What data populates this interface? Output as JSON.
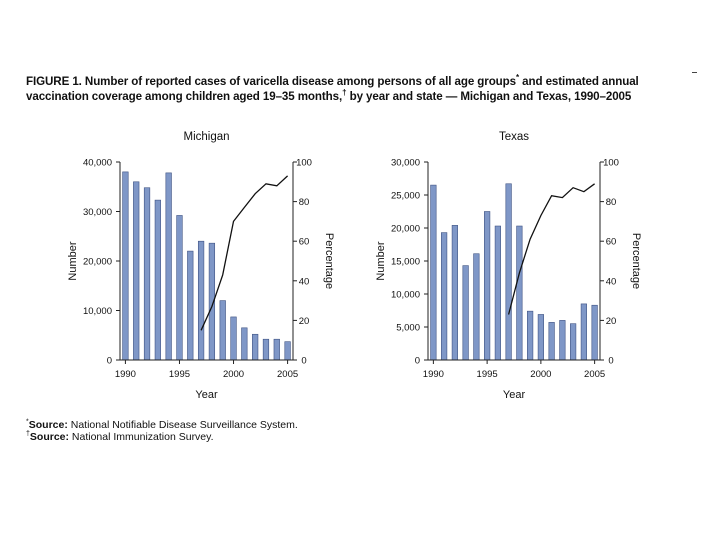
{
  "figure": {
    "label": "FIGURE 1.",
    "title_part1": "Number of reported cases of varicella disease among persons of all age groups",
    "mark1": "*",
    "title_part2": "and estimated annual vaccination coverage among children aged 19–35 months,",
    "mark2": "†",
    "title_part3": "by year and state — Michigan and Texas, 1990–2005"
  },
  "footnotes": [
    {
      "mark": "*",
      "label": "Source:",
      "text": "National Notifiable Disease Surveillance System."
    },
    {
      "mark": "†",
      "label": "Source:",
      "text": "National Immunization Survey."
    }
  ],
  "colors": {
    "bar": "#7f97c7",
    "bar_edge": "#3e5282",
    "line": "#111111",
    "axis": "#222222"
  },
  "chart_data": [
    {
      "type": "bar",
      "title": "Michigan",
      "xlabel": "Year",
      "ylabel": "Number",
      "y2label": "Percentage",
      "x_ticks": [
        "1990",
        "1995",
        "2000",
        "2005"
      ],
      "y_ticks": [
        "0",
        "10,000",
        "20,000",
        "30,000",
        "40,000"
      ],
      "y2_ticks": [
        "0",
        "20",
        "40",
        "60",
        "80",
        "100"
      ],
      "ylim": [
        0,
        40000
      ],
      "y2lim": [
        0,
        100
      ],
      "categories": [
        1990,
        1991,
        1992,
        1993,
        1994,
        1995,
        1996,
        1997,
        1998,
        1999,
        2000,
        2001,
        2002,
        2003,
        2004,
        2005
      ],
      "series": [
        {
          "name": "Number of reported cases",
          "axis": "left",
          "type": "bar",
          "values": [
            38000,
            36000,
            34800,
            32300,
            37800,
            29200,
            22000,
            24000,
            23600,
            12000,
            8700,
            6500,
            5200,
            4200,
            4200,
            3700
          ]
        },
        {
          "name": "Vaccination coverage (%)",
          "axis": "right",
          "type": "line",
          "x": [
            1997,
            1998,
            1999,
            2000,
            2001,
            2002,
            2003,
            2004,
            2005
          ],
          "values": [
            15,
            27,
            43,
            70,
            77,
            84,
            89,
            88,
            93
          ]
        }
      ]
    },
    {
      "type": "bar",
      "title": "Texas",
      "xlabel": "Year",
      "ylabel": "Number",
      "y2label": "Percentage",
      "x_ticks": [
        "1990",
        "1995",
        "2000",
        "2005"
      ],
      "y_ticks": [
        "0",
        "5,000",
        "10,000",
        "15,000",
        "20,000",
        "25,000",
        "30,000"
      ],
      "y2_ticks": [
        "0",
        "20",
        "40",
        "60",
        "80",
        "100"
      ],
      "ylim": [
        0,
        30000
      ],
      "y2lim": [
        0,
        100
      ],
      "categories": [
        1990,
        1991,
        1992,
        1993,
        1994,
        1995,
        1996,
        1997,
        1998,
        1999,
        2000,
        2001,
        2002,
        2003,
        2004,
        2005
      ],
      "series": [
        {
          "name": "Number of reported cases",
          "axis": "left",
          "type": "bar",
          "values": [
            26500,
            19300,
            20400,
            14300,
            16100,
            22500,
            20300,
            26700,
            20300,
            7400,
            6900,
            5700,
            6000,
            5500,
            8500,
            8300
          ]
        },
        {
          "name": "Vaccination coverage (%)",
          "axis": "right",
          "type": "line",
          "x": [
            1997,
            1998,
            1999,
            2000,
            2001,
            2002,
            2003,
            2004,
            2005
          ],
          "values": [
            23,
            44,
            61,
            73,
            83,
            82,
            87,
            85,
            89
          ]
        }
      ]
    }
  ]
}
